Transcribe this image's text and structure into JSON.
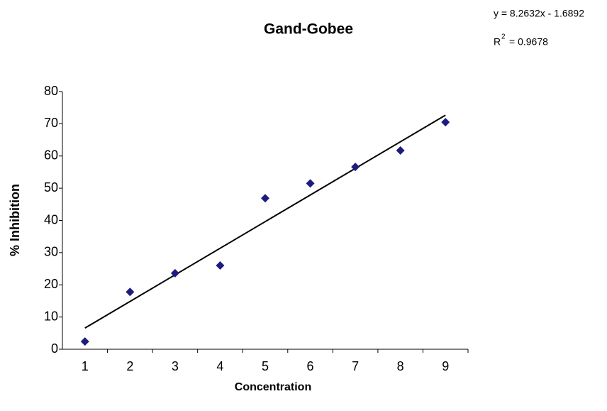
{
  "chart_data": {
    "type": "scatter",
    "title": "Gand-Gobee",
    "xlabel": "Concentration",
    "ylabel": "% Inhibition",
    "categories": [
      "1",
      "2",
      "3",
      "4",
      "5",
      "6",
      "7",
      "8",
      "9"
    ],
    "values": [
      2.4,
      17.8,
      23.6,
      26,
      46.9,
      51.5,
      56.6,
      61.7,
      70.5
    ],
    "color": "#1c1c80",
    "ylim": [
      0,
      80
    ],
    "yticks": [
      0,
      10,
      20,
      30,
      40,
      50,
      60,
      70,
      80
    ],
    "trendline": {
      "slope": 8.2632,
      "intercept": -1.6892,
      "color": "#000000",
      "equation": "y = 8.2632x - 1.6892",
      "r_squared_label": {
        "symbol": "R",
        "exponent": "2",
        "text": "= 0.9678"
      }
    }
  }
}
